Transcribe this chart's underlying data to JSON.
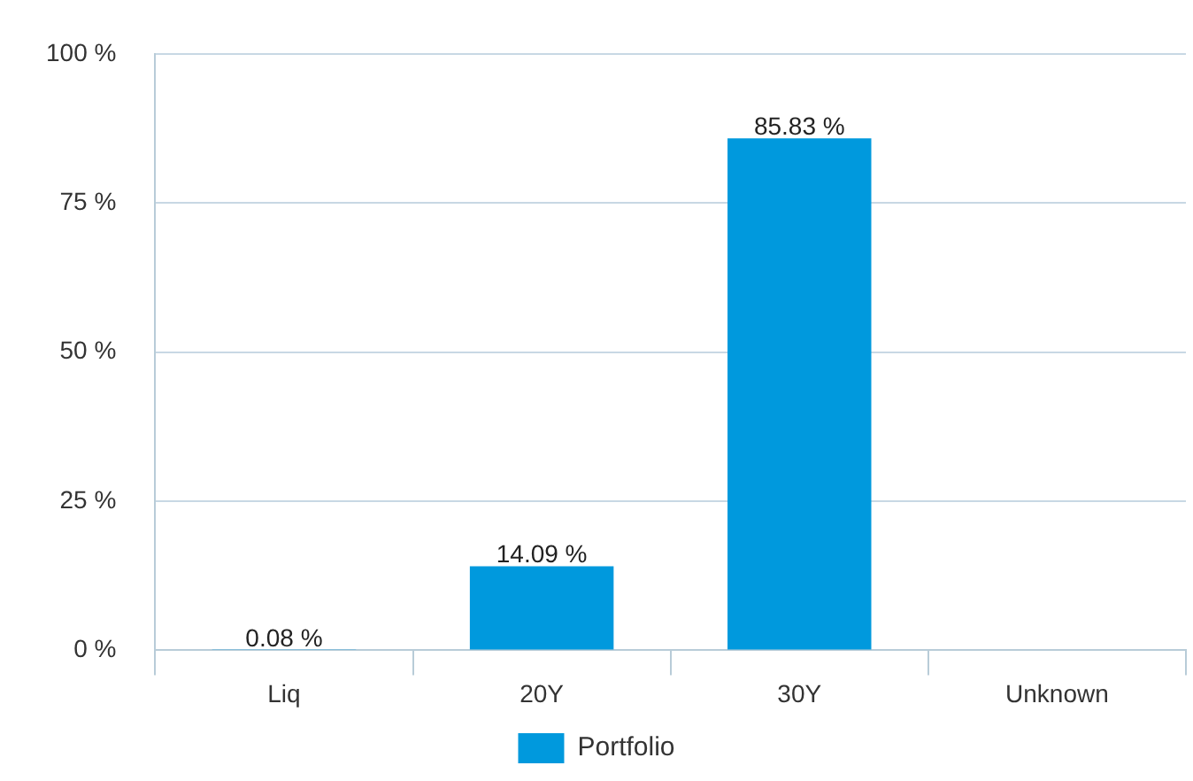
{
  "chart_data": {
    "type": "bar",
    "categories": [
      "Liq",
      "20Y",
      "30Y",
      "Unknown"
    ],
    "series": [
      {
        "name": "Portfolio",
        "color": "#0099dd",
        "values": [
          0.08,
          14.09,
          85.83,
          null
        ],
        "value_labels": [
          "0.08 %",
          "14.09 %",
          "85.83 %",
          null
        ]
      }
    ],
    "ylim": [
      0,
      100
    ],
    "yticks": [
      {
        "value": 0,
        "label": "0 %"
      },
      {
        "value": 25,
        "label": "25 %"
      },
      {
        "value": 50,
        "label": "50 %"
      },
      {
        "value": 75,
        "label": "75 %"
      },
      {
        "value": 100,
        "label": "100 %"
      }
    ],
    "grid": "y",
    "legend": "bottom"
  }
}
